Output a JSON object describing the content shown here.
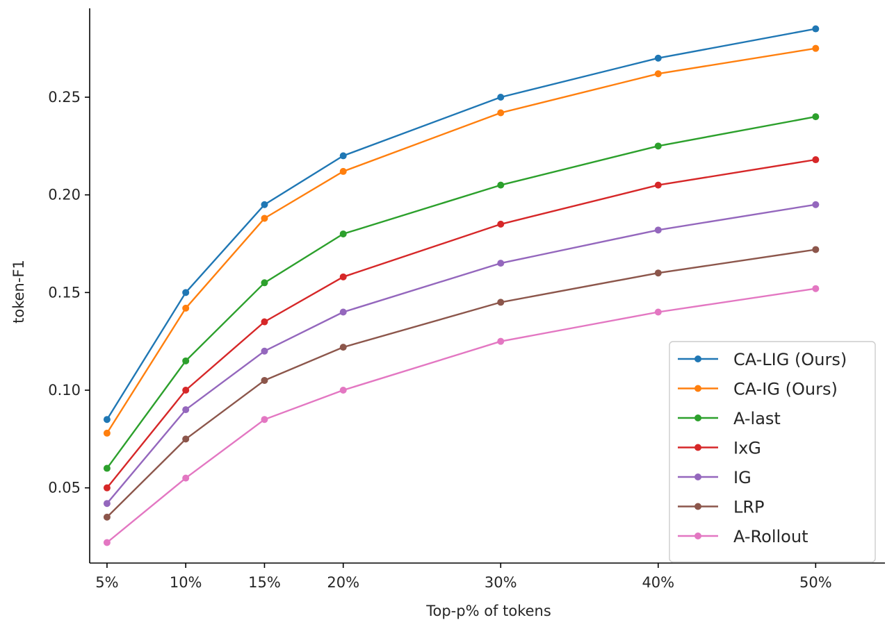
{
  "chart_data": {
    "type": "line",
    "title": "",
    "xlabel": "Top-p% of tokens",
    "ylabel": "token-F1",
    "x": [
      5,
      10,
      15,
      20,
      30,
      40,
      50
    ],
    "x_tick_labels": [
      "5%",
      "10%",
      "15%",
      "20%",
      "30%",
      "40%",
      "50%"
    ],
    "y_ticks": [
      0.05,
      0.1,
      0.15,
      0.2,
      0.25
    ],
    "y_tick_labels": [
      "0.05",
      "0.10",
      "0.15",
      "0.20",
      "0.25"
    ],
    "xlim": [
      3.9,
      54.4
    ],
    "ylim": [
      0.0115,
      0.2955
    ],
    "grid": false,
    "legend_position": "bottom-right",
    "series": [
      {
        "name": "CA-LIG (Ours)",
        "color": "#1f77b4",
        "values": [
          0.085,
          0.15,
          0.195,
          0.22,
          0.25,
          0.27,
          0.285
        ]
      },
      {
        "name": "CA-IG (Ours)",
        "color": "#ff7f0e",
        "values": [
          0.078,
          0.142,
          0.188,
          0.212,
          0.242,
          0.262,
          0.275
        ]
      },
      {
        "name": "A-last",
        "color": "#2ca02c",
        "values": [
          0.06,
          0.115,
          0.155,
          0.18,
          0.205,
          0.225,
          0.24
        ]
      },
      {
        "name": "IxG",
        "color": "#d62728",
        "values": [
          0.05,
          0.1,
          0.135,
          0.158,
          0.185,
          0.205,
          0.218
        ]
      },
      {
        "name": "IG",
        "color": "#9467bd",
        "values": [
          0.042,
          0.09,
          0.12,
          0.14,
          0.165,
          0.182,
          0.195
        ]
      },
      {
        "name": "LRP",
        "color": "#8c564b",
        "values": [
          0.035,
          0.075,
          0.105,
          0.122,
          0.145,
          0.16,
          0.172
        ]
      },
      {
        "name": "A-Rollout",
        "color": "#e377c2",
        "values": [
          0.022,
          0.055,
          0.085,
          0.1,
          0.125,
          0.14,
          0.152
        ]
      }
    ]
  }
}
